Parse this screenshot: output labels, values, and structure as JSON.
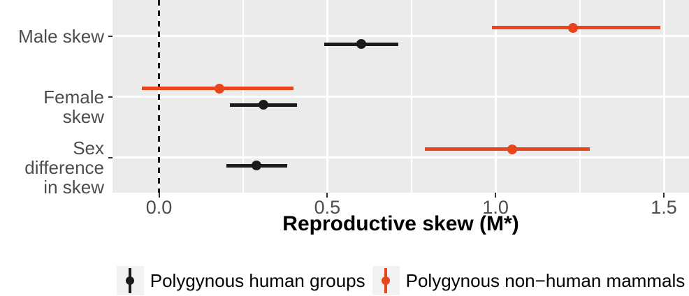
{
  "figure": {
    "background": "#FFFFFF"
  },
  "chart_data": {
    "type": "pointrange",
    "orientation": "horizontal",
    "title": "",
    "xlabel": "Reproductive skew (M*)",
    "ylabel": "",
    "categories": [
      "Male skew",
      "Female skew",
      "Sex difference\nin skew"
    ],
    "xlim": [
      -0.14,
      1.57
    ],
    "xticks": [
      0,
      0.5,
      1,
      1.5
    ],
    "xtick_labels": [
      "0.0",
      "0.5",
      "1.0",
      "1.5"
    ],
    "x_minor_gridlines": [
      0.25,
      0.75,
      1.25
    ],
    "reference_line": {
      "x": 0,
      "style": "dashed",
      "color": "#1A1A1A"
    },
    "panel_background": "#EBEBEB",
    "grid_color": "#FFFFFF",
    "axis_text_color": "#4D4D4D",
    "tick_color": "#333333",
    "legend_position": "bottom",
    "series": [
      {
        "name": "Polygynous human groups",
        "color": "#1B1B1B",
        "points": [
          {
            "category": "Male skew",
            "estimate": 0.6,
            "lower": 0.49,
            "upper": 0.71
          },
          {
            "category": "Female skew",
            "estimate": 0.31,
            "lower": 0.21,
            "upper": 0.41
          },
          {
            "category": "Sex difference in skew",
            "estimate": 0.29,
            "lower": 0.2,
            "upper": 0.38
          }
        ]
      },
      {
        "name": "Polygynous non−human mammals",
        "color": "#E8451C",
        "points": [
          {
            "category": "Male skew",
            "estimate": 1.23,
            "lower": 0.99,
            "upper": 1.49
          },
          {
            "category": "Female skew",
            "estimate": 0.18,
            "lower": -0.05,
            "upper": 0.4
          },
          {
            "category": "Sex difference in skew",
            "estimate": 1.05,
            "lower": 0.79,
            "upper": 1.28
          }
        ]
      }
    ]
  }
}
